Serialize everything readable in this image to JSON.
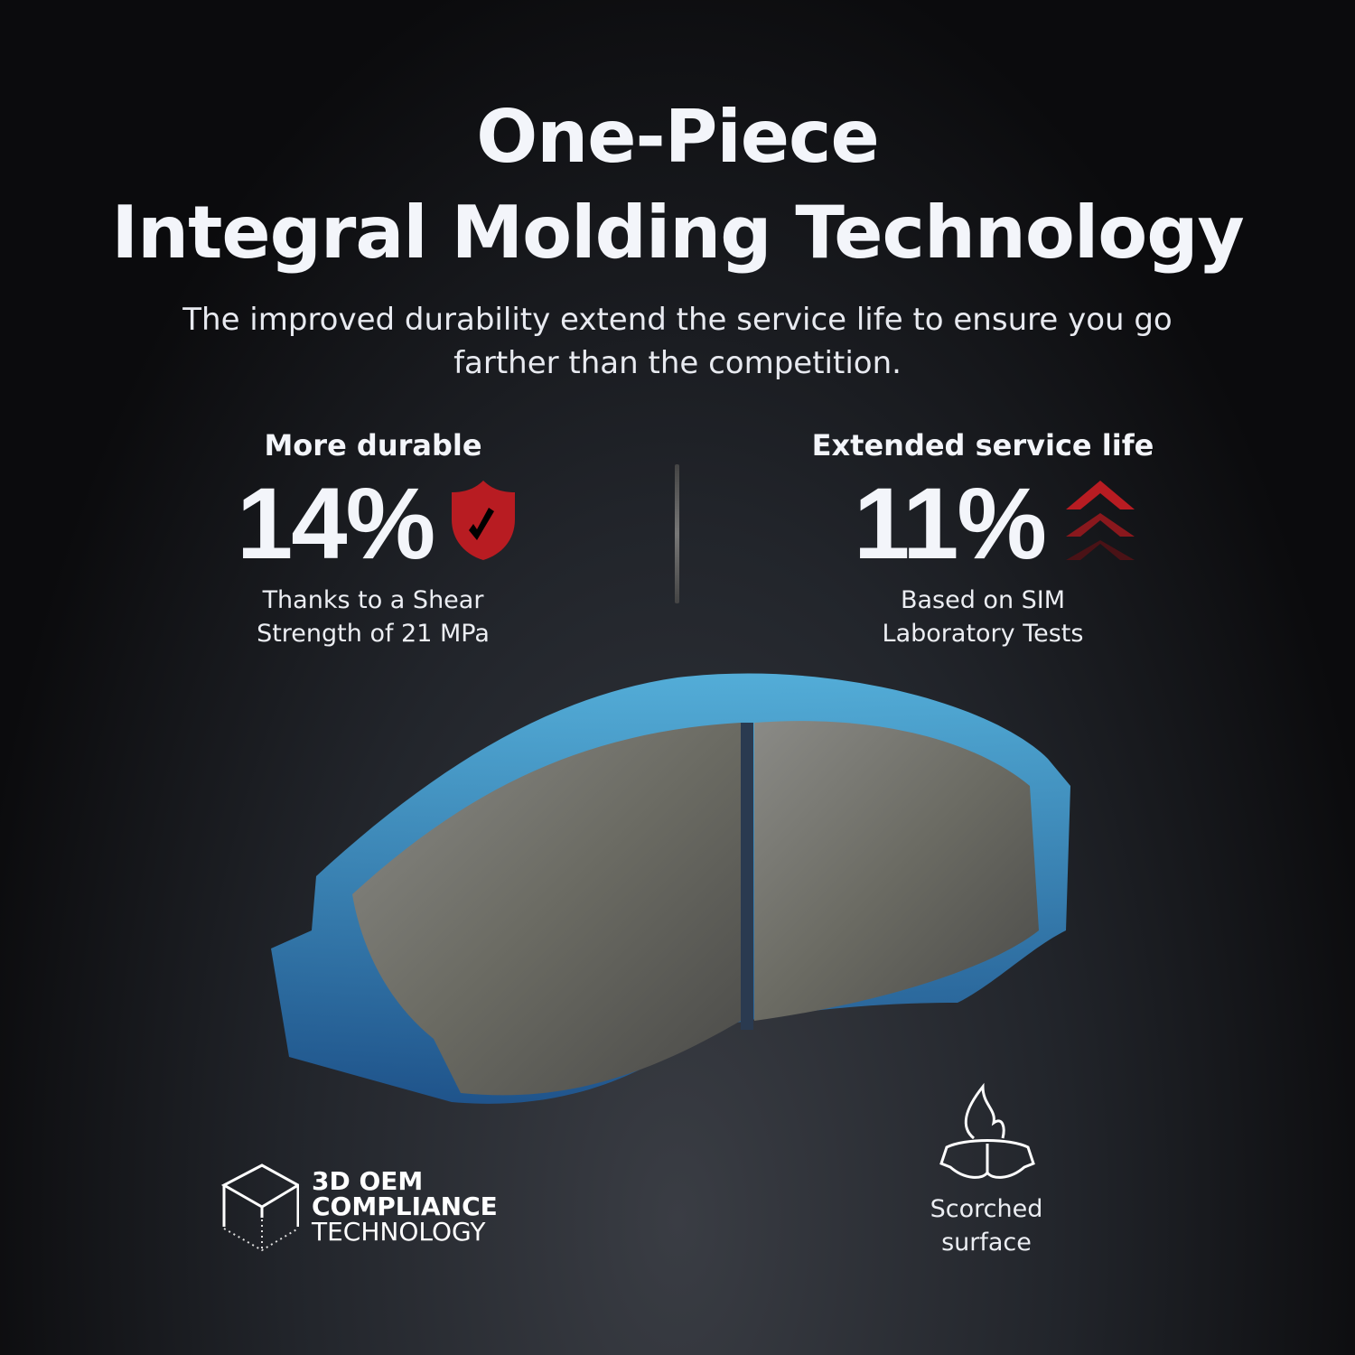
{
  "header": {
    "title_line1": "One-Piece",
    "title_line2": "Integral Molding Technology",
    "subtitle": "The improved durability extend the service life to ensure you go farther than the competition."
  },
  "stats": [
    {
      "heading": "More durable",
      "value": "14%",
      "icon": "shield-check-icon",
      "note_line1": "Thanks to a Shear",
      "note_line2": "Strength of 21 MPa"
    },
    {
      "heading": "Extended service life",
      "value": "11%",
      "icon": "triple-chevron-up-icon",
      "note_line1": "Based on SIM",
      "note_line2": "Laboratory Tests"
    }
  ],
  "badges": {
    "compliance": {
      "icon": "cube-icon",
      "line1": "3D OEM",
      "line2": "COMPLIANCE",
      "line3": "TECHNOLOGY"
    },
    "scorched": {
      "icon": "flame-brake-pad-icon",
      "line1": "Scorched",
      "line2": "surface"
    }
  },
  "colors": {
    "accent_red": "#b81c22",
    "glow_blue": "#3aa0e0",
    "background": "#0b0b0d"
  }
}
